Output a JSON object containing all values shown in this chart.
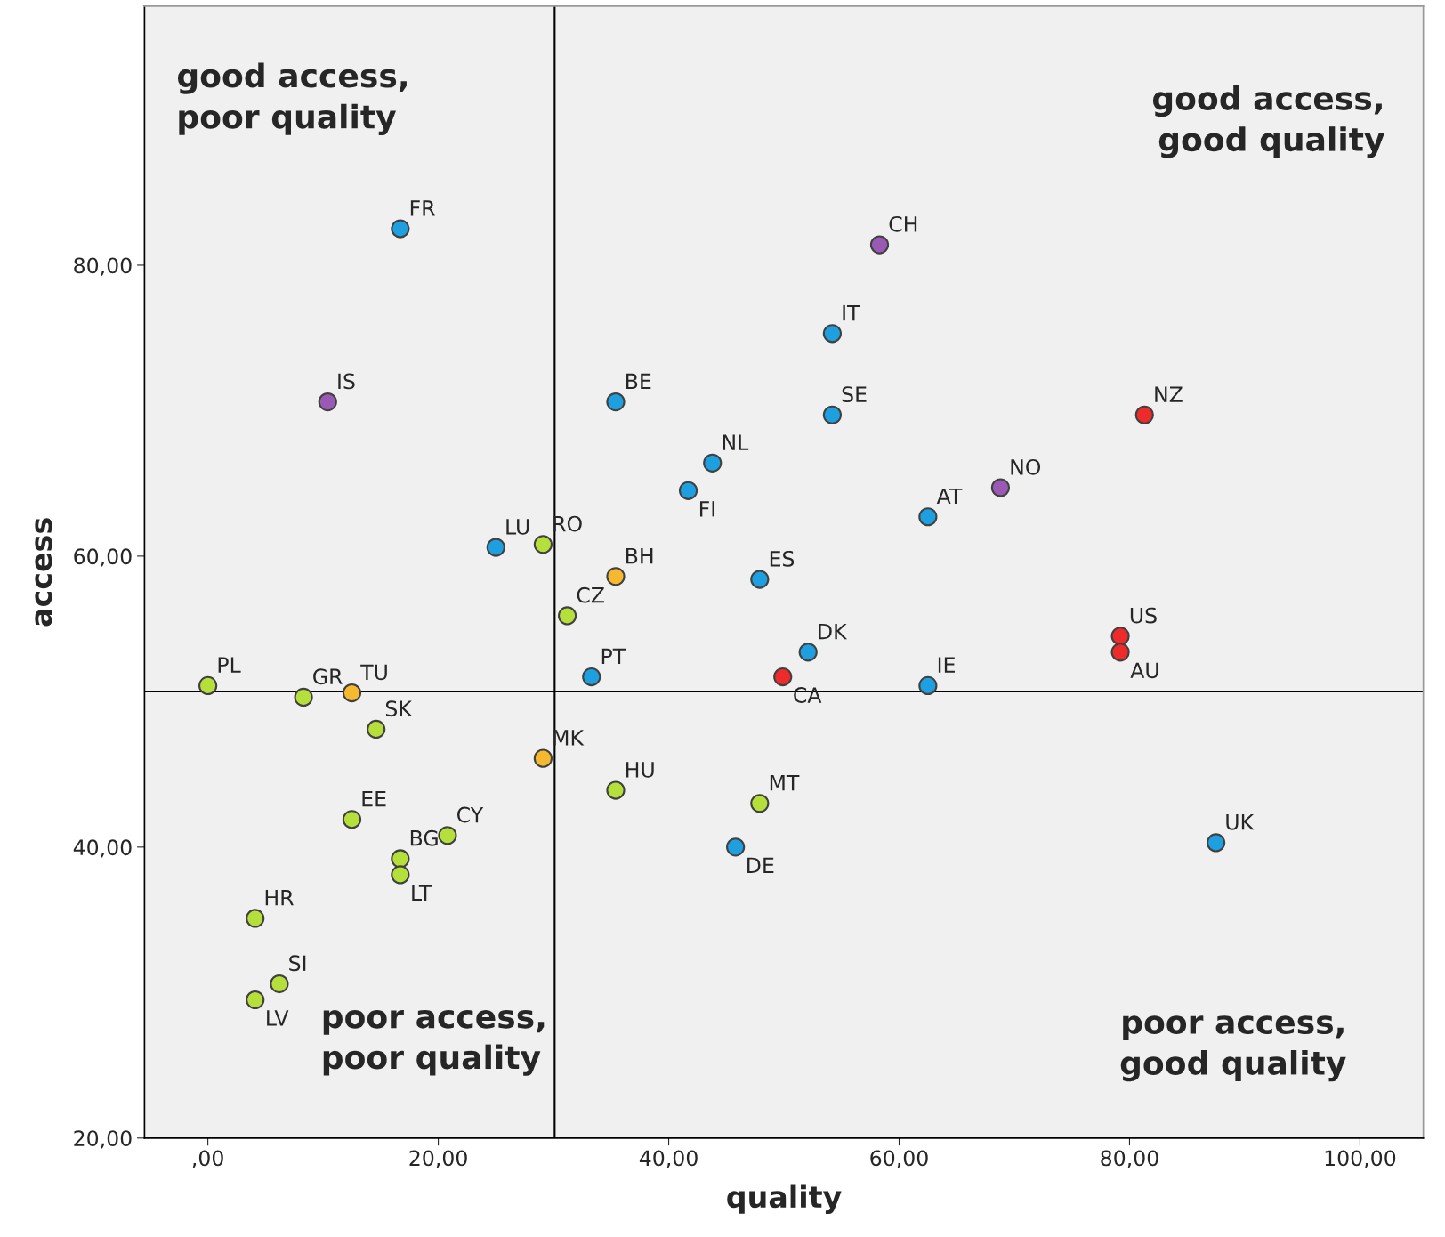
{
  "chart_data": {
    "type": "scatter",
    "xlabel": "quality",
    "ylabel": "access",
    "xlim": [
      -5.5,
      105.5
    ],
    "ylim": [
      20,
      97.8
    ],
    "xticks": [
      {
        "value": 0,
        "label": ",00"
      },
      {
        "value": 20,
        "label": "20,00"
      },
      {
        "value": 40,
        "label": "40,00"
      },
      {
        "value": 60,
        "label": "60,00"
      },
      {
        "value": 80,
        "label": "80,00"
      },
      {
        "value": 100,
        "label": "100,00"
      }
    ],
    "yticks": [
      {
        "value": 20,
        "label": "20,00"
      },
      {
        "value": 40,
        "label": "40,00"
      },
      {
        "value": 60,
        "label": "60,00"
      },
      {
        "value": 80,
        "label": "80,00"
      }
    ],
    "grid": false,
    "marker": "circle",
    "series": [
      {
        "color": "#1e9fe0",
        "x": [
          16.7,
          35.4,
          54.2,
          54.2,
          43.8,
          41.7,
          62.5,
          25.0,
          47.9,
          52.1,
          62.5,
          33.3,
          87.5,
          45.8
        ],
        "values": [
          82.5,
          70.6,
          75.3,
          69.7,
          66.4,
          64.5,
          62.7,
          60.6,
          58.4,
          53.4,
          51.1,
          51.7,
          40.3,
          40.0
        ]
      },
      {
        "color": "#9b59b6",
        "x": [
          10.4,
          58.3,
          68.8
        ],
        "values": [
          70.6,
          81.4,
          64.7
        ]
      },
      {
        "color": "#ee2a2a",
        "x": [
          81.3,
          79.2,
          79.2,
          49.9
        ],
        "values": [
          69.7,
          54.5,
          53.4,
          51.7
        ]
      },
      {
        "color": "#f5b82e",
        "x": [
          35.4,
          12.5,
          29.1
        ],
        "values": [
          58.6,
          50.6,
          46.1
        ]
      },
      {
        "color": "#b5e03c",
        "x": [
          29.1,
          31.2,
          0,
          8.3,
          14.6,
          35.4,
          47.9,
          12.5,
          20.8,
          16.7,
          16.7,
          4.1,
          6.2,
          4.1
        ],
        "values": [
          60.8,
          55.9,
          51.1,
          50.3,
          48.1,
          43.9,
          43.0,
          41.9,
          40.8,
          39.2,
          38.1,
          35.1,
          30.6,
          29.5
        ]
      }
    ],
    "ref_lines": [
      {
        "axis": "x",
        "value": 30.1,
        "color": "#000000"
      },
      {
        "axis": "y",
        "value": 50.7,
        "color": "#000000"
      }
    ],
    "annotations": [
      "good access,\npoor quality",
      "good access,\ngood quality",
      "poor access,\npoor quality",
      "poor access,\ngood quality",
      {
        "text": "FR",
        "x": 16.7,
        "y": 82.5
      },
      {
        "text": "BE",
        "x": 35.4,
        "y": 70.6
      },
      {
        "text": "IT",
        "x": 54.2,
        "y": 75.3
      },
      {
        "text": "SE",
        "x": 54.2,
        "y": 69.7
      },
      {
        "text": "NL",
        "x": 43.8,
        "y": 66.4
      },
      {
        "text": "FI",
        "x": 41.7,
        "y": 64.5
      },
      {
        "text": "AT",
        "x": 62.5,
        "y": 62.7
      },
      {
        "text": "LU",
        "x": 25.0,
        "y": 60.6
      },
      {
        "text": "ES",
        "x": 47.9,
        "y": 58.4
      },
      {
        "text": "DK",
        "x": 52.1,
        "y": 53.4
      },
      {
        "text": "IE",
        "x": 62.5,
        "y": 51.1
      },
      {
        "text": "PT",
        "x": 33.3,
        "y": 51.7
      },
      {
        "text": "UK",
        "x": 87.5,
        "y": 40.3
      },
      {
        "text": "DE",
        "x": 45.8,
        "y": 40.0
      },
      {
        "text": "IS",
        "x": 10.4,
        "y": 70.6
      },
      {
        "text": "CH",
        "x": 58.3,
        "y": 81.4
      },
      {
        "text": "NO",
        "x": 68.8,
        "y": 64.7
      },
      {
        "text": "NZ",
        "x": 81.3,
        "y": 69.7
      },
      {
        "text": "US",
        "x": 79.2,
        "y": 54.5
      },
      {
        "text": "AU",
        "x": 79.2,
        "y": 53.4
      },
      {
        "text": "CA",
        "x": 49.9,
        "y": 51.7
      },
      {
        "text": "BH",
        "x": 35.4,
        "y": 58.6
      },
      {
        "text": "TU",
        "x": 12.5,
        "y": 50.6
      },
      {
        "text": "MK",
        "x": 29.1,
        "y": 46.1
      },
      {
        "text": "RO",
        "x": 29.1,
        "y": 60.8
      },
      {
        "text": "CZ",
        "x": 31.2,
        "y": 55.9
      },
      {
        "text": "PL",
        "x": 0,
        "y": 51.1
      },
      {
        "text": "GR",
        "x": 8.3,
        "y": 50.3
      },
      {
        "text": "SK",
        "x": 14.6,
        "y": 48.1
      },
      {
        "text": "HU",
        "x": 35.4,
        "y": 43.9
      },
      {
        "text": "MT",
        "x": 47.9,
        "y": 43.0
      },
      {
        "text": "EE",
        "x": 12.5,
        "y": 41.9
      },
      {
        "text": "CY",
        "x": 20.8,
        "y": 40.8
      },
      {
        "text": "BG",
        "x": 16.7,
        "y": 39.2
      },
      {
        "text": "LT",
        "x": 16.7,
        "y": 38.1
      },
      {
        "text": "HR",
        "x": 4.1,
        "y": 35.1
      },
      {
        "text": "SI",
        "x": 6.2,
        "y": 30.6
      },
      {
        "text": "LV",
        "x": 4.1,
        "y": 29.5
      }
    ]
  }
}
